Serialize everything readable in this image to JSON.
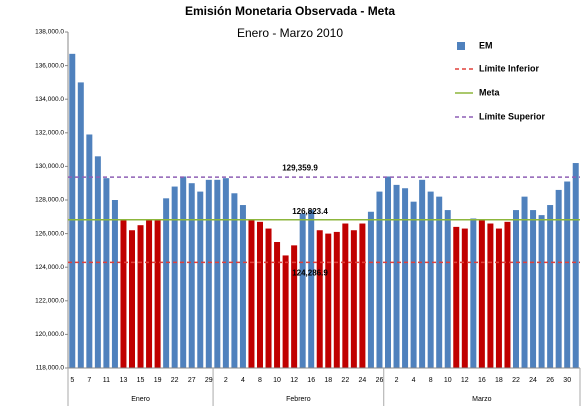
{
  "chart_data": {
    "type": "bar",
    "title": "Emisión Monetaria Observada - Meta",
    "subtitle": "Enero - Marzo 2010",
    "categories": [
      "5",
      null,
      "7",
      null,
      "11",
      null,
      "13",
      null,
      "15",
      null,
      "19",
      null,
      "22",
      null,
      "27",
      null,
      "29",
      null,
      "2",
      null,
      "4",
      null,
      "8",
      null,
      "10",
      null,
      "12",
      null,
      "16",
      null,
      "18",
      null,
      "22",
      null,
      "24",
      null,
      "26",
      null,
      "2",
      null,
      "4",
      null,
      "8",
      null,
      "10",
      null,
      "12",
      null,
      "16",
      null,
      "18",
      null,
      "22",
      null,
      "24",
      null,
      "26",
      null,
      "30",
      null
    ],
    "groups": [
      {
        "label": "Enero",
        "count": 17
      },
      {
        "label": "Febrero",
        "count": 20
      },
      {
        "label": "Marzo",
        "count": 23
      }
    ],
    "series": [
      {
        "name": "EM",
        "color": "#4f81bd",
        "values": [
          136700,
          135000,
          131900,
          130600,
          129300,
          128000,
          126800,
          126200,
          126500,
          126800,
          126800,
          128100,
          128800,
          129400,
          129000,
          128500,
          129200,
          129200,
          129300,
          128400,
          127700,
          126800,
          126700,
          126300,
          125500,
          124700,
          125300,
          127200,
          127400,
          126200,
          126000,
          126100,
          126600,
          126200,
          126600,
          127300,
          128500,
          129400,
          128900,
          128700,
          127900,
          129200,
          128500,
          128200,
          127400,
          126400,
          126300,
          126900,
          126800,
          126600,
          126300,
          126700,
          127400,
          128200,
          127400,
          127100,
          127700,
          128600,
          129100,
          130200
        ],
        "colors": [
          "#4f81bd",
          "#4f81bd",
          "#4f81bd",
          "#4f81bd",
          "#4f81bd",
          "#4f81bd",
          "#c00000",
          "#c00000",
          "#c00000",
          "#c00000",
          "#c00000",
          "#4f81bd",
          "#4f81bd",
          "#4f81bd",
          "#4f81bd",
          "#4f81bd",
          "#4f81bd",
          "#4f81bd",
          "#4f81bd",
          "#4f81bd",
          "#4f81bd",
          "#c00000",
          "#c00000",
          "#c00000",
          "#c00000",
          "#c00000",
          "#c00000",
          "#4f81bd",
          "#4f81bd",
          "#c00000",
          "#c00000",
          "#c00000",
          "#c00000",
          "#c00000",
          "#c00000",
          "#4f81bd",
          "#4f81bd",
          "#4f81bd",
          "#4f81bd",
          "#4f81bd",
          "#4f81bd",
          "#4f81bd",
          "#4f81bd",
          "#4f81bd",
          "#4f81bd",
          "#c00000",
          "#c00000",
          "#4f81bd",
          "#c00000",
          "#c00000",
          "#c00000",
          "#c00000",
          "#4f81bd",
          "#4f81bd",
          "#4f81bd",
          "#4f81bd",
          "#4f81bd",
          "#4f81bd",
          "#4f81bd",
          "#4f81bd"
        ]
      }
    ],
    "lines": [
      {
        "name": "Límite Inferior",
        "value": 124286.9,
        "value_label": "124,286.9",
        "color": "#e0403a",
        "dashed": true
      },
      {
        "name": "Meta",
        "value": 126823.4,
        "value_label": "126,823.4",
        "color": "#8db63c",
        "dashed": false
      },
      {
        "name": "Límite Superior",
        "value": 129359.9,
        "value_label": "129,359.9",
        "color": "#8e5fb5",
        "dashed": true
      }
    ],
    "ylim": [
      118000,
      138000
    ],
    "yticks": [
      {
        "value": 118000,
        "label": "118,000.0"
      },
      {
        "value": 120000,
        "label": "120,000.0"
      },
      {
        "value": 122000,
        "label": "122,000.0"
      },
      {
        "value": 124000,
        "label": "124,000.0"
      },
      {
        "value": 126000,
        "label": "126,000.0"
      },
      {
        "value": 128000,
        "label": "128,000.0"
      },
      {
        "value": 130000,
        "label": "130,000.0"
      },
      {
        "value": 132000,
        "label": "132,000.0"
      },
      {
        "value": 134000,
        "label": "134,000.0"
      },
      {
        "value": 136000,
        "label": "136,000.0"
      },
      {
        "value": 138000,
        "label": "138,000.0"
      }
    ],
    "legend": "top-right"
  }
}
